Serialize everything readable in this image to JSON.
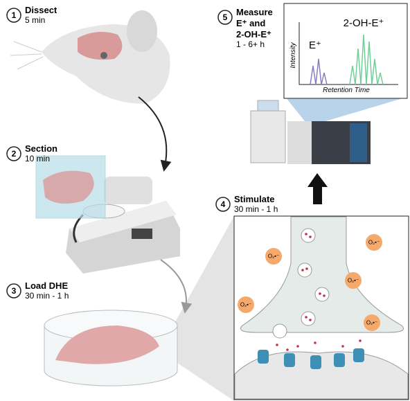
{
  "steps": [
    {
      "number": "1",
      "title": [
        "Dissect"
      ],
      "duration": "5 min"
    },
    {
      "number": "2",
      "title": [
        "Section"
      ],
      "duration": "10 min"
    },
    {
      "number": "3",
      "title": [
        "Load DHE"
      ],
      "duration": "30 min - 1 h"
    },
    {
      "number": "4",
      "title": [
        "Stimulate"
      ],
      "duration": "30 min - 1 h"
    },
    {
      "number": "5",
      "title": [
        "Measure",
        "E⁺ and",
        "2-OH-E⁺"
      ],
      "duration": "1 - 6+ h"
    }
  ],
  "chromatogram": {
    "peak_labels": [
      "E⁺",
      "2-OH-E⁺"
    ],
    "y_label": "Intensity",
    "x_label": "Retention Time"
  },
  "superoxide_labels": [
    "O₂•⁻",
    "O₂•⁻",
    "O₂•⁻",
    "O₂•⁻",
    "O₂•⁻"
  ]
}
